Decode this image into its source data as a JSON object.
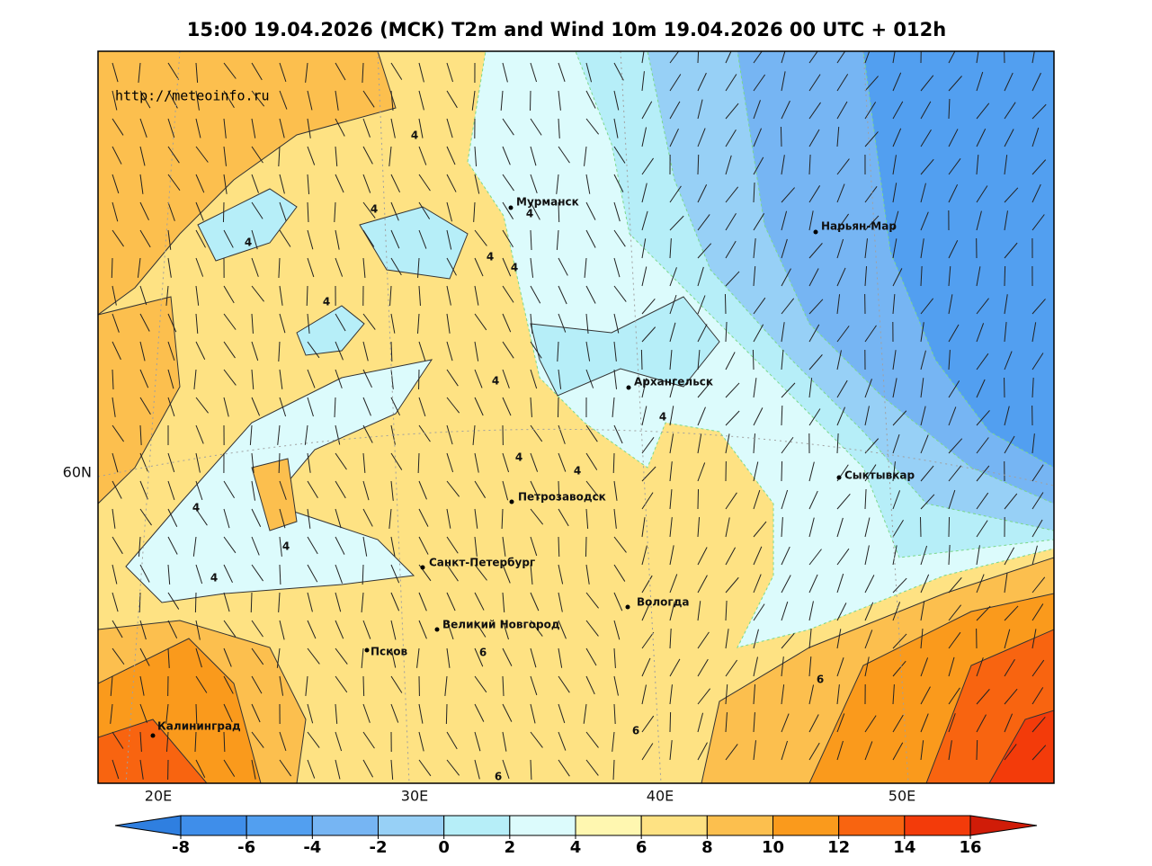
{
  "header": {
    "title": "15:00 19.04.2026 (МСК) T2m and Wind 10m 19.04.2026 00 UTC + 012h",
    "source": "http://meteoinfo.ru"
  },
  "map": {
    "lon_labels": [
      "20E",
      "30E",
      "40E",
      "50E"
    ],
    "lat_labels": [
      "60N"
    ],
    "cities": [
      "Мурманск",
      "Нарьян-Мар",
      "Архангельск",
      "Сыктывкар",
      "Петрозаводск",
      "Санкт-Петербург",
      "Вологда",
      "Великий Новгород",
      "Псков",
      "Калининград"
    ],
    "contour_labels": [
      "4",
      "4",
      "4",
      "4",
      "4",
      "4",
      "4",
      "4",
      "4",
      "4",
      "4",
      "4",
      "4",
      "4",
      "6",
      "6",
      "6",
      "6"
    ]
  },
  "colorbar": {
    "ticks": [
      -8,
      -6,
      -4,
      -2,
      0,
      2,
      4,
      6,
      8,
      10,
      12,
      14,
      16
    ],
    "colors": [
      "#2f7fe0",
      "#3f8eea",
      "#529ff0",
      "#76b5f3",
      "#97d0f6",
      "#b6eef8",
      "#dcfbfc",
      "#fff7b0",
      "#fee283",
      "#fcbf4e",
      "#fa9a1c",
      "#f86410",
      "#f33b0a",
      "#d01c08"
    ]
  }
}
